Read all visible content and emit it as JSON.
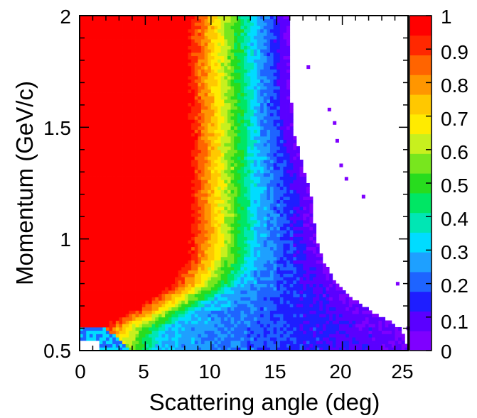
{
  "chart_data": {
    "type": "heatmap",
    "title": "",
    "xlabel": "Scattering angle (deg)",
    "ylabel": "Momentum (GeV/c)",
    "xlim": [
      0,
      25
    ],
    "ylim": [
      0.5,
      2
    ],
    "zlim": [
      0,
      1
    ],
    "x_ticks": [
      "0",
      "5",
      "10",
      "15",
      "20",
      "25"
    ],
    "y_ticks": [
      "0.5",
      "1",
      "1.5",
      "2"
    ],
    "colorbar_ticks": [
      "0",
      "0.1",
      "0.2",
      "0.3",
      "0.4",
      "0.5",
      "0.6",
      "0.7",
      "0.8",
      "0.9",
      "1"
    ],
    "colormap": [
      "#7f00ff",
      "#5a00ff",
      "#1e1eff",
      "#1e64ff",
      "#1ea0ff",
      "#00dcff",
      "#00e6b4",
      "#00e664",
      "#28dc1e",
      "#78e61e",
      "#c8f01e",
      "#ffeb00",
      "#ffc800",
      "#ff9600",
      "#ff6400",
      "#ff2800",
      "#ff0000"
    ],
    "grid": false,
    "legend": "colorbar-right",
    "structure": {
      "full_efficiency_edge_deg": [
        [
          0.5,
          0.8
        ],
        [
          0.6,
          1.5
        ],
        [
          0.7,
          4.5
        ],
        [
          0.8,
          7.0
        ],
        [
          0.9,
          8.0
        ],
        [
          1.0,
          8.4
        ],
        [
          1.2,
          8.4
        ],
        [
          1.5,
          8.4
        ],
        [
          1.8,
          8.2
        ],
        [
          2.0,
          8.3
        ]
      ],
      "acceptance_limit_deg": [
        [
          0.5,
          25.0
        ],
        [
          0.6,
          24.5
        ],
        [
          0.7,
          21.5
        ],
        [
          0.8,
          19.5
        ],
        [
          0.9,
          18.6
        ],
        [
          1.0,
          18.0
        ],
        [
          1.2,
          17.6
        ],
        [
          1.5,
          16.2
        ],
        [
          1.8,
          16.0
        ],
        [
          2.0,
          16.0
        ]
      ]
    }
  }
}
